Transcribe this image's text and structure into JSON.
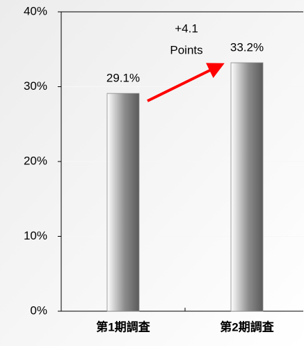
{
  "chart_data": {
    "type": "bar",
    "categories": [
      "第1期調査",
      "第2期調査"
    ],
    "values": [
      29.1,
      33.2
    ],
    "value_labels": [
      "29.1%",
      "33.2%"
    ],
    "color": "#8c8c8c",
    "ylim": [
      0,
      40
    ],
    "yticks": [
      {
        "value": 0,
        "label": "0%"
      },
      {
        "value": 10,
        "label": "10%"
      },
      {
        "value": 20,
        "label": "20%"
      },
      {
        "value": 30,
        "label": "30%"
      },
      {
        "value": 40,
        "label": "40%"
      }
    ],
    "grid": true,
    "annotation": [
      "+4.1",
      "Points"
    ],
    "annotation_color": "#ff0000"
  }
}
